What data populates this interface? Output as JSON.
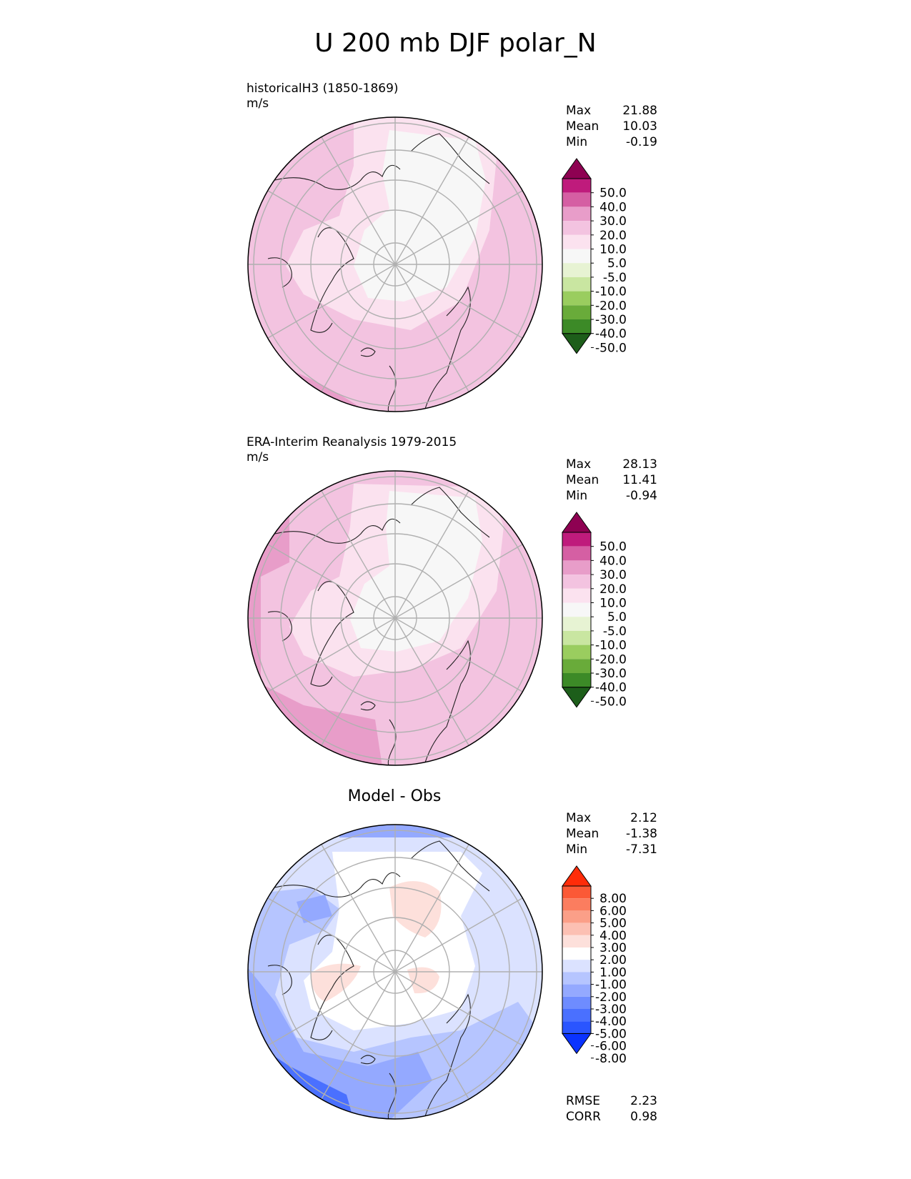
{
  "main_title": "U 200 mb DJF polar_N",
  "colors": {
    "pink_levels": [
      "#1d5e1a",
      "#3c8a27",
      "#69ab3a",
      "#9acd5f",
      "#c9e6a1",
      "#e7f3d3",
      "#f7f7f7",
      "#fbe2ef",
      "#f3c3e0",
      "#e89dc9",
      "#d55fa3",
      "#bf1b7c",
      "#8e0152"
    ],
    "diff_levels": [
      "#0a33ff",
      "#2a55ff",
      "#4a70ff",
      "#6e8cff",
      "#94a9ff",
      "#b6c5ff",
      "#dbe2ff",
      "#ffffff",
      "#fde0db",
      "#fcc0b3",
      "#fb9f88",
      "#fb7d5f",
      "#fb5936",
      "#ff2c09"
    ]
  },
  "panels": [
    {
      "id": "model",
      "label": "historicalH3 (1850-1869)",
      "units": "m/s",
      "stats": [
        {
          "name": "Max",
          "value": "21.88"
        },
        {
          "name": "Mean",
          "value": "10.03"
        },
        {
          "name": "Min",
          "value": "-0.19"
        }
      ],
      "colorbar_ticks": [
        "50.0",
        "40.0",
        "30.0",
        "20.0",
        "10.0",
        "5.0",
        "-5.0",
        "-10.0",
        "-20.0",
        "-30.0",
        "-40.0",
        "-50.0"
      ]
    },
    {
      "id": "obs",
      "label": "ERA-Interim Reanalysis 1979-2015",
      "units": "m/s",
      "stats": [
        {
          "name": "Max",
          "value": "28.13"
        },
        {
          "name": "Mean",
          "value": "11.41"
        },
        {
          "name": "Min",
          "value": "-0.94"
        }
      ],
      "colorbar_ticks": [
        "50.0",
        "40.0",
        "30.0",
        "20.0",
        "10.0",
        "5.0",
        "-5.0",
        "-10.0",
        "-20.0",
        "-30.0",
        "-40.0",
        "-50.0"
      ]
    },
    {
      "id": "diff",
      "title": "Model - Obs",
      "stats": [
        {
          "name": "Max",
          "value": "2.12"
        },
        {
          "name": "Mean",
          "value": "-1.38"
        },
        {
          "name": "Min",
          "value": "-7.31"
        }
      ],
      "colorbar_ticks": [
        "8.00",
        "6.00",
        "5.00",
        "4.00",
        "3.00",
        "2.00",
        "1.00",
        "-1.00",
        "-2.00",
        "-3.00",
        "-4.00",
        "-5.00",
        "-6.00",
        "-8.00"
      ],
      "metrics": [
        {
          "name": "RMSE",
          "value": "2.23"
        },
        {
          "name": "CORR",
          "value": "0.98"
        }
      ]
    }
  ],
  "chart_data": [
    {
      "type": "heatmap",
      "projection": "polar stereographic (north)",
      "label": "historicalH3 (1850-1869)",
      "units": "m/s",
      "levels": [
        -50,
        -40,
        -30,
        -20,
        -10,
        -5,
        5,
        10,
        20,
        30,
        40,
        50
      ],
      "stats": {
        "max": 21.88,
        "mean": 10.03,
        "min": -0.19
      }
    },
    {
      "type": "heatmap",
      "projection": "polar stereographic (north)",
      "label": "ERA-Interim Reanalysis 1979-2015",
      "units": "m/s",
      "levels": [
        -50,
        -40,
        -30,
        -20,
        -10,
        -5,
        5,
        10,
        20,
        30,
        40,
        50
      ],
      "stats": {
        "max": 28.13,
        "mean": 11.41,
        "min": -0.94
      }
    },
    {
      "type": "heatmap",
      "projection": "polar stereographic (north)",
      "title": "Model - Obs",
      "levels": [
        -8,
        -6,
        -5,
        -4,
        -3,
        -2,
        -1,
        1,
        2,
        3,
        4,
        5,
        6,
        8
      ],
      "stats": {
        "max": 2.12,
        "mean": -1.38,
        "min": -7.31
      },
      "rmse": 2.23,
      "corr": 0.98
    }
  ]
}
